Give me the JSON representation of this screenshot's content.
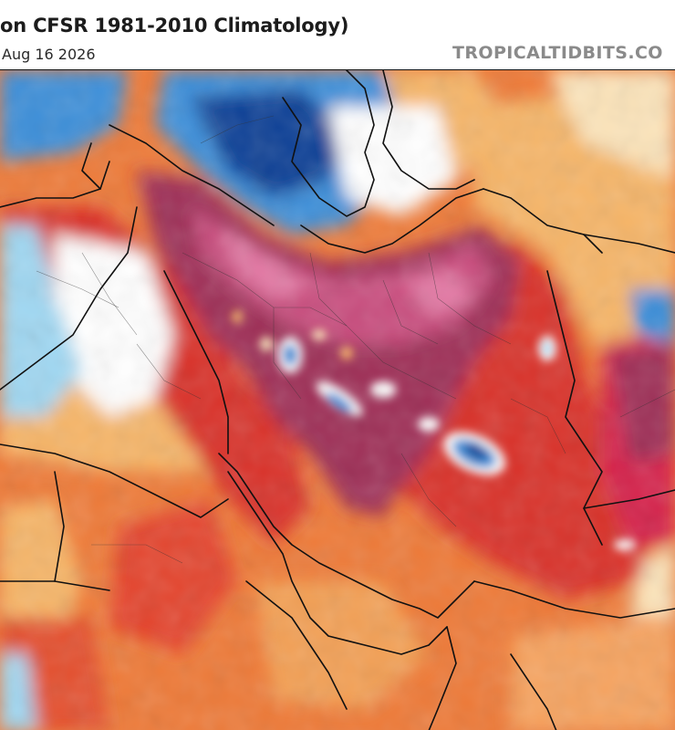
{
  "header": {
    "title": "on CFSR 1981-2010 Climatology)",
    "date": "Aug 16 2026",
    "brand": "TROPICALTIDBITS.CO"
  },
  "colors": {
    "deep_anomaly": "#9e2f57",
    "strong_anomaly": "#d6204b",
    "red": "#d9302a",
    "orange_red": "#e95a2f",
    "orange": "#f0863c",
    "light_orange": "#f6b568",
    "pale": "#fbe3b9",
    "white": "#ffffff",
    "light_blue": "#9fd7f2",
    "blue": "#3d8fd9",
    "deep_blue": "#0e3f96",
    "pink": "#e47aa6"
  }
}
